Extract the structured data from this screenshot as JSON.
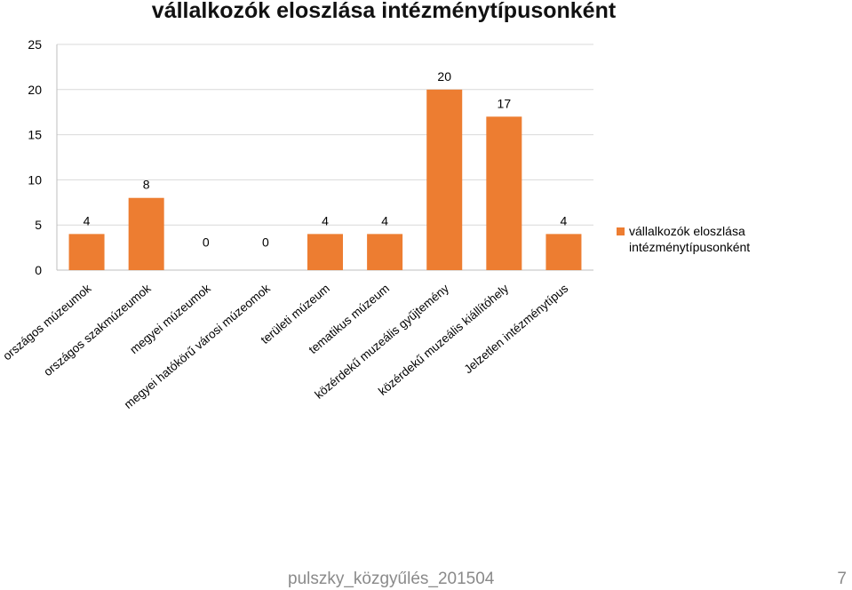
{
  "slide": {
    "footer_text": "pulszky_közgyűlés_201504",
    "page_number": "7"
  },
  "chart_data": {
    "type": "bar",
    "title": "vállalkozók eloszlása intézménytípusonként",
    "categories": [
      "országos múzeumok",
      "országos szakmúzeumok",
      "megyei múzeumok",
      "megyei hatókörű városi múzeomok",
      "területi múzeum",
      "tematikus múzeum",
      "közérdekű muzeális gyűjtemény",
      "közérdekű muzeális kiállítóhely",
      "Jelzetlen intézménytípus"
    ],
    "series": [
      {
        "name": "vállalkozók eloszlása intézménytípusonként",
        "values": [
          4,
          8,
          0,
          0,
          4,
          4,
          20,
          17,
          4
        ]
      }
    ],
    "data_labels": [
      "4",
      "8",
      "0",
      "0",
      "4",
      "4",
      "20",
      "17",
      "4"
    ],
    "yticks": [
      "0",
      "5",
      "10",
      "15",
      "20",
      "25"
    ],
    "ylim": [
      0,
      25
    ],
    "xlabel": "",
    "ylabel": "",
    "grid": true,
    "legend_position": "right",
    "colors": {
      "bar": "#ed7d31",
      "grid": "#d9d9d9",
      "axis": "#bfbfbf"
    }
  }
}
